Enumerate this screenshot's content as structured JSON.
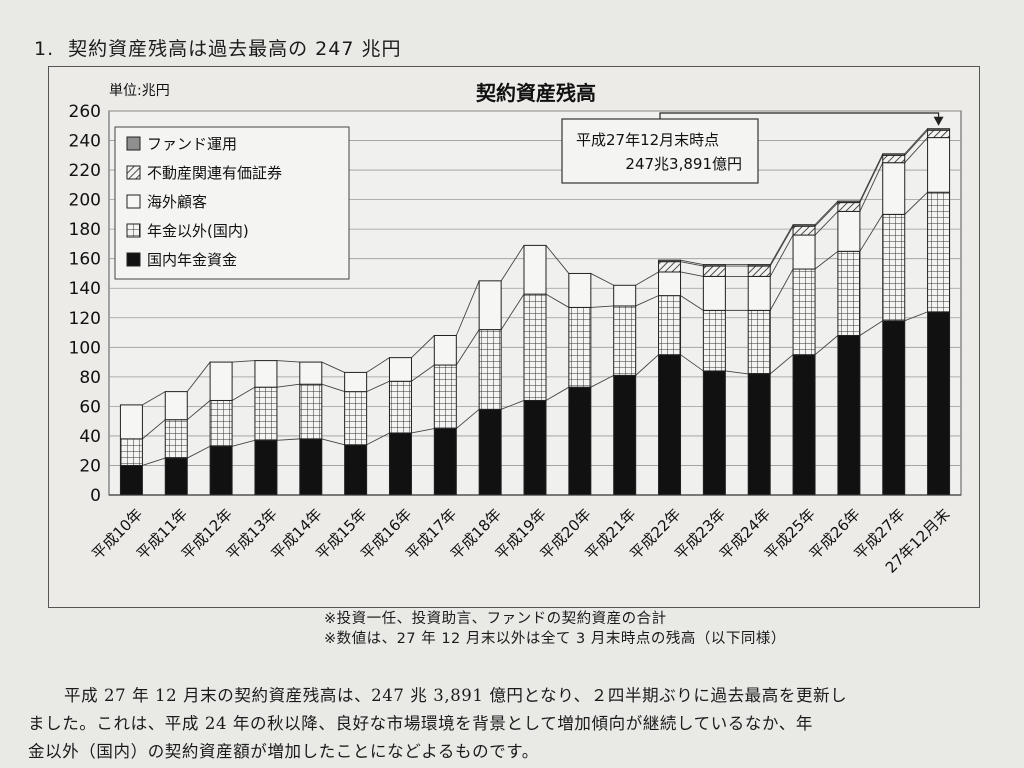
{
  "heading": {
    "number": "1.",
    "title": "契約資産残高は過去最高の 247 兆円"
  },
  "chart_data": {
    "type": "bar",
    "stacked": true,
    "title": "契約資産残高",
    "unit_label": "単位:兆円",
    "ylim": [
      0,
      260
    ],
    "yticks": [
      0,
      20,
      40,
      60,
      80,
      100,
      120,
      140,
      160,
      180,
      200,
      220,
      240,
      260
    ],
    "grid": true,
    "categories": [
      "平成10年",
      "平成11年",
      "平成12年",
      "平成13年",
      "平成14年",
      "平成15年",
      "平成16年",
      "平成17年",
      "平成18年",
      "平成19年",
      "平成20年",
      "平成21年",
      "平成22年",
      "平成23年",
      "平成24年",
      "平成25年",
      "平成26年",
      "平成27年",
      "27年12月末"
    ],
    "series": [
      {
        "name": "国内年金資金",
        "values": [
          20,
          25,
          33,
          37,
          38,
          34,
          42,
          45,
          58,
          64,
          73,
          81,
          95,
          84,
          82,
          95,
          108,
          118,
          124
        ]
      },
      {
        "name": "年金以外(国内)",
        "values": [
          18,
          26,
          31,
          36,
          37,
          36,
          35,
          43,
          54,
          72,
          54,
          47,
          40,
          41,
          43,
          58,
          57,
          72,
          81
        ]
      },
      {
        "name": "海外顧客",
        "values": [
          23,
          19,
          26,
          18,
          15,
          13,
          16,
          20,
          33,
          33,
          23,
          14,
          16,
          23,
          23,
          23,
          27,
          35,
          37
        ]
      },
      {
        "name": "不動産関連有価証券",
        "values": [
          0,
          0,
          0,
          0,
          0,
          0,
          0,
          0,
          0,
          0,
          0,
          0,
          7,
          7,
          7,
          6,
          6,
          5,
          5
        ]
      },
      {
        "name": "ファンド運用",
        "values": [
          0,
          0,
          0,
          0,
          0,
          0,
          0,
          0,
          0,
          0,
          0,
          0,
          1,
          1,
          1,
          1,
          1,
          1,
          1
        ]
      }
    ],
    "legend": {
      "position": "top-left",
      "items": [
        "ファンド運用",
        "不動産関連有価証券",
        "海外顧客",
        "年金以外(国内)",
        "国内年金資金"
      ]
    },
    "annotation": {
      "line1": "平成27年12月末時点",
      "line2": "247兆3,891億円",
      "target_category": "27年12月末"
    }
  },
  "notes": [
    "※投資一任、投資助言、ファンドの契約資産の合計",
    "※数値は、27 年 12 月末以外は全て 3 月末時点の残高（以下同様）"
  ],
  "paragraph": [
    "平成 27 年 12 月末の契約資産残高は、247 兆 3,891 億円となり、２四半期ぶりに過去最高を更新し",
    "ました。これは、平成 24 年の秋以降、良好な市場環境を背景として増加傾向が継続しているなか、年",
    "金以外（国内）の契約資産額が増加したことになどよるものです。"
  ]
}
